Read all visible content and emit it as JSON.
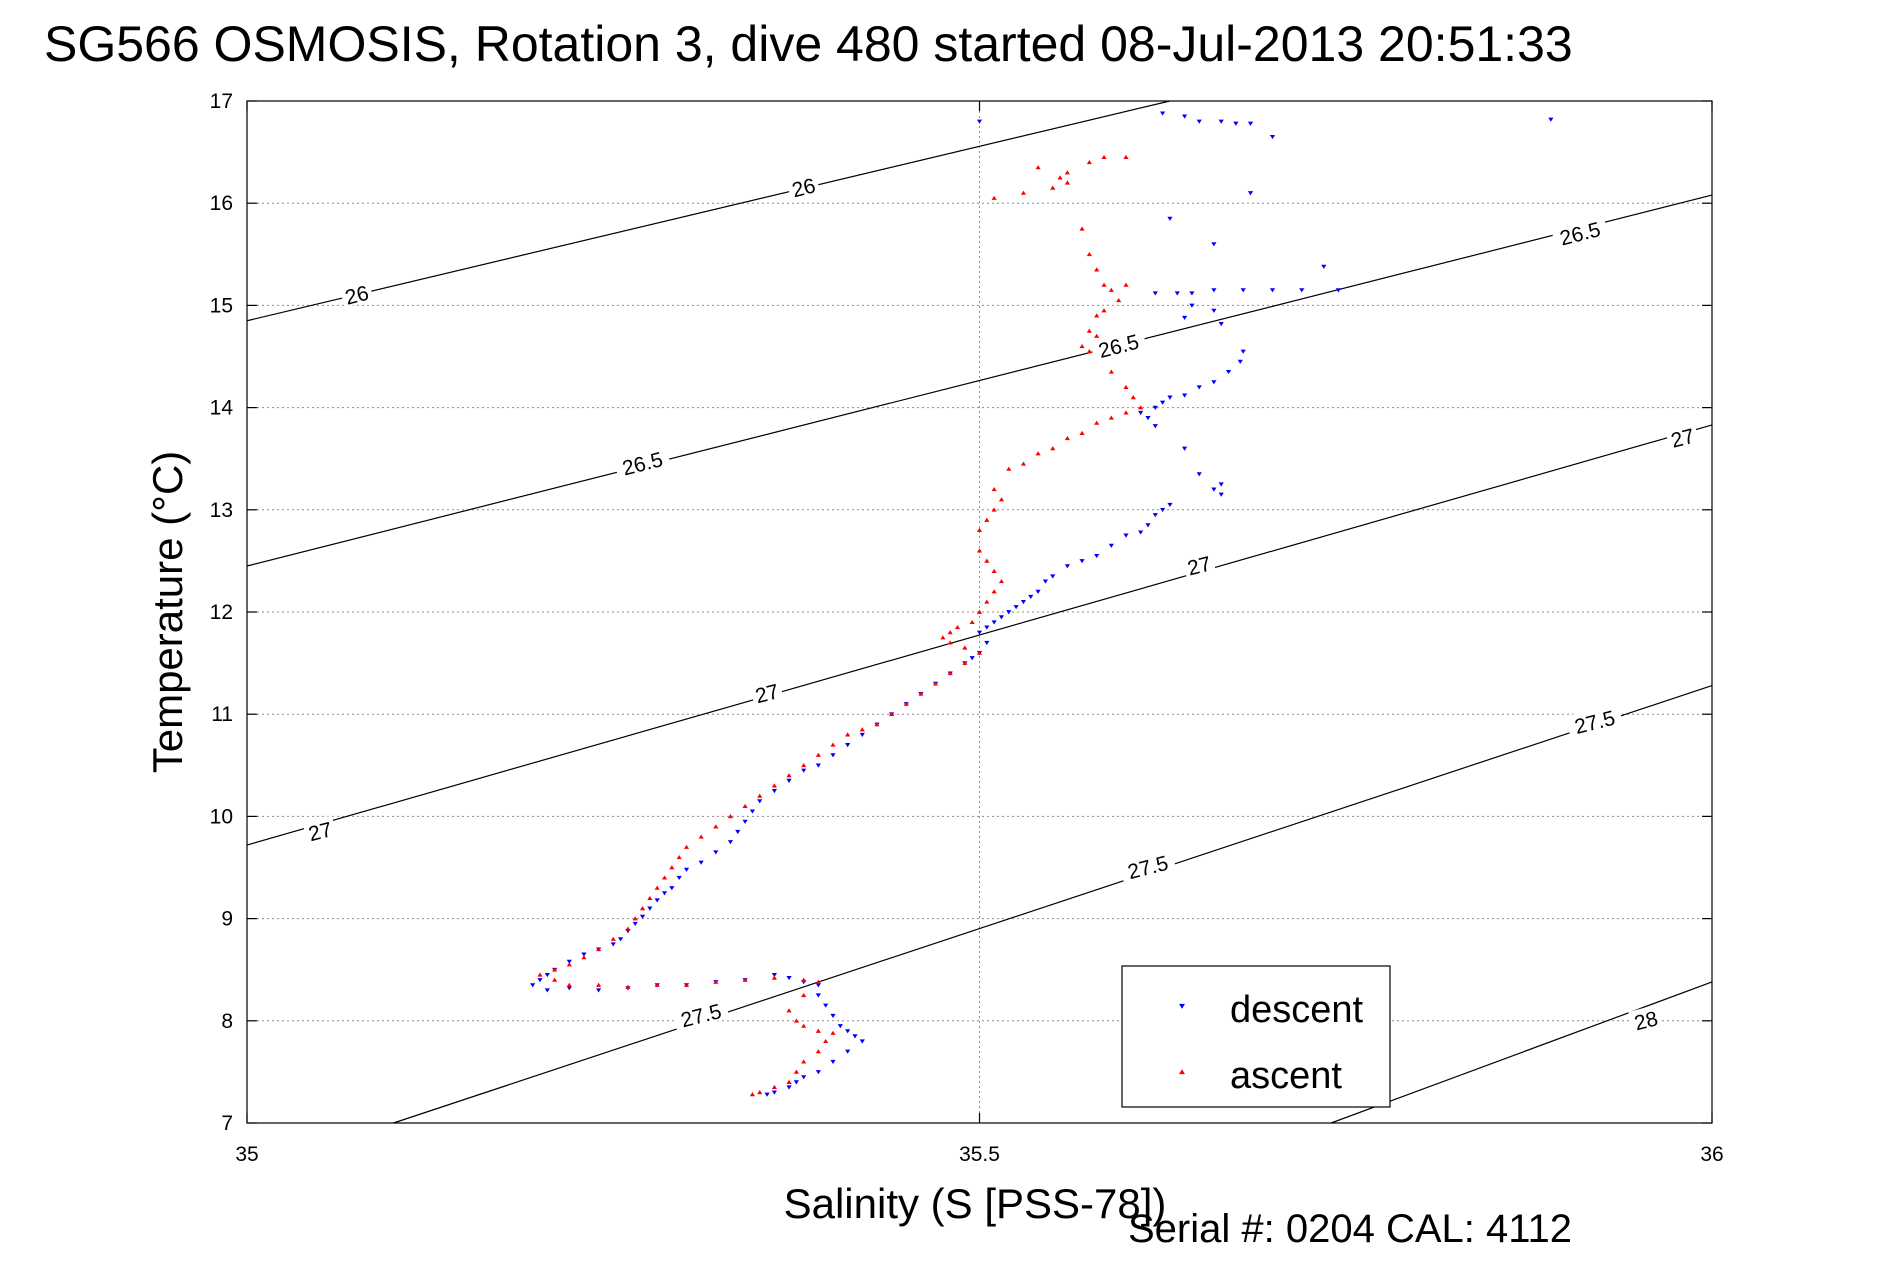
{
  "title": "SG566 OSMOSIS, Rotation 3, dive 480 started 08-Jul-2013 20:51:33",
  "serial_text": "Serial #: 0204  CAL: 4112",
  "colors": {
    "descent": "#0000ff",
    "ascent": "#ff0000",
    "contours": "#000000",
    "grid": "#8c8c8c"
  },
  "chart_data": {
    "type": "scatter",
    "title": "SG566 OSMOSIS, Rotation 3, dive 480 started 08-Jul-2013 20:51:33",
    "xlabel": "Salinity (S [PSS-78])",
    "ylabel": "Temperature (°C)",
    "xlim": [
      35,
      36
    ],
    "ylim": [
      7,
      17
    ],
    "xticks": [
      "35",
      "35.5",
      "36"
    ],
    "yticks": [
      "7",
      "8",
      "9",
      "10",
      "11",
      "12",
      "13",
      "14",
      "15",
      "16",
      "17"
    ],
    "grid": true,
    "legend_position": "bottom-right",
    "legend": [
      "descent",
      "ascent"
    ],
    "density_contours": [
      {
        "value": "26",
        "points": [
          [
            35,
            14.85
          ],
          [
            35.63,
            17
          ]
        ]
      },
      {
        "value": "26.5",
        "points": [
          [
            35,
            12.45
          ],
          [
            36,
            16.08
          ]
        ]
      },
      {
        "value": "27",
        "points": [
          [
            35,
            9.72
          ],
          [
            36,
            13.83
          ]
        ]
      },
      {
        "value": "27.5",
        "points": [
          [
            35.1,
            7
          ],
          [
            36,
            11.28
          ]
        ]
      },
      {
        "value": "28",
        "points": [
          [
            35.74,
            7
          ],
          [
            36,
            8.38
          ]
        ]
      }
    ],
    "contour_labels": [
      {
        "text": "26",
        "x": 35.38,
        "y": 16.15
      },
      {
        "text": "26",
        "x": 35.075,
        "y": 15.1
      },
      {
        "text": "26.5",
        "x": 35.91,
        "y": 15.7
      },
      {
        "text": "26.5",
        "x": 35.595,
        "y": 14.6
      },
      {
        "text": "26.5",
        "x": 35.27,
        "y": 13.45
      },
      {
        "text": "27",
        "x": 35.98,
        "y": 13.7
      },
      {
        "text": "27",
        "x": 35.65,
        "y": 12.45
      },
      {
        "text": "27",
        "x": 35.355,
        "y": 11.2
      },
      {
        "text": "27",
        "x": 35.05,
        "y": 9.85
      },
      {
        "text": "27.5",
        "x": 35.92,
        "y": 10.92
      },
      {
        "text": "27.5",
        "x": 35.615,
        "y": 9.5
      },
      {
        "text": "27.5",
        "x": 35.31,
        "y": 8.05
      },
      {
        "text": "28",
        "x": 35.955,
        "y": 8.0
      }
    ],
    "series": [
      {
        "name": "descent",
        "marker": "triangle-down",
        "color": "#0000ff",
        "points": [
          [
            35.5,
            16.8
          ],
          [
            35.625,
            16.88
          ],
          [
            35.64,
            16.85
          ],
          [
            35.65,
            16.8
          ],
          [
            35.665,
            16.8
          ],
          [
            35.675,
            16.78
          ],
          [
            35.685,
            16.78
          ],
          [
            35.7,
            16.65
          ],
          [
            35.89,
            16.82
          ],
          [
            35.685,
            16.1
          ],
          [
            35.63,
            15.85
          ],
          [
            35.66,
            15.6
          ],
          [
            35.735,
            15.38
          ],
          [
            35.745,
            15.15
          ],
          [
            35.72,
            15.15
          ],
          [
            35.7,
            15.15
          ],
          [
            35.68,
            15.15
          ],
          [
            35.66,
            15.15
          ],
          [
            35.645,
            15.12
          ],
          [
            35.635,
            15.12
          ],
          [
            35.62,
            15.12
          ],
          [
            35.645,
            15.0
          ],
          [
            35.66,
            14.95
          ],
          [
            35.64,
            14.88
          ],
          [
            35.665,
            14.82
          ],
          [
            35.68,
            14.55
          ],
          [
            35.678,
            14.45
          ],
          [
            35.67,
            14.35
          ],
          [
            35.66,
            14.25
          ],
          [
            35.65,
            14.2
          ],
          [
            35.64,
            14.12
          ],
          [
            35.63,
            14.1
          ],
          [
            35.625,
            14.05
          ],
          [
            35.62,
            14.0
          ],
          [
            35.61,
            13.95
          ],
          [
            35.615,
            13.9
          ],
          [
            35.62,
            13.82
          ],
          [
            35.64,
            13.6
          ],
          [
            35.65,
            13.35
          ],
          [
            35.665,
            13.25
          ],
          [
            35.66,
            13.2
          ],
          [
            35.665,
            13.15
          ],
          [
            35.63,
            13.05
          ],
          [
            35.625,
            13.0
          ],
          [
            35.62,
            12.95
          ],
          [
            35.615,
            12.85
          ],
          [
            35.61,
            12.78
          ],
          [
            35.6,
            12.75
          ],
          [
            35.59,
            12.65
          ],
          [
            35.58,
            12.55
          ],
          [
            35.57,
            12.5
          ],
          [
            35.56,
            12.45
          ],
          [
            35.55,
            12.35
          ],
          [
            35.545,
            12.3
          ],
          [
            35.54,
            12.2
          ],
          [
            35.535,
            12.15
          ],
          [
            35.53,
            12.1
          ],
          [
            35.525,
            12.05
          ],
          [
            35.52,
            12.0
          ],
          [
            35.515,
            11.95
          ],
          [
            35.51,
            11.9
          ],
          [
            35.505,
            11.85
          ],
          [
            35.5,
            11.8
          ],
          [
            35.505,
            11.7
          ],
          [
            35.5,
            11.6
          ],
          [
            35.495,
            11.55
          ],
          [
            35.49,
            11.5
          ],
          [
            35.48,
            11.4
          ],
          [
            35.47,
            11.3
          ],
          [
            35.46,
            11.2
          ],
          [
            35.45,
            11.1
          ],
          [
            35.44,
            11.0
          ],
          [
            35.43,
            10.9
          ],
          [
            35.42,
            10.8
          ],
          [
            35.41,
            10.7
          ],
          [
            35.4,
            10.6
          ],
          [
            35.39,
            10.5
          ],
          [
            35.38,
            10.45
          ],
          [
            35.37,
            10.35
          ],
          [
            35.36,
            10.25
          ],
          [
            35.35,
            10.15
          ],
          [
            35.345,
            10.05
          ],
          [
            35.34,
            9.95
          ],
          [
            35.335,
            9.85
          ],
          [
            35.33,
            9.75
          ],
          [
            35.32,
            9.65
          ],
          [
            35.31,
            9.55
          ],
          [
            35.3,
            9.48
          ],
          [
            35.295,
            9.4
          ],
          [
            35.29,
            9.3
          ],
          [
            35.285,
            9.25
          ],
          [
            35.28,
            9.18
          ],
          [
            35.275,
            9.1
          ],
          [
            35.27,
            9.02
          ],
          [
            35.265,
            8.95
          ],
          [
            35.26,
            8.88
          ],
          [
            35.255,
            8.8
          ],
          [
            35.25,
            8.75
          ],
          [
            35.24,
            8.7
          ],
          [
            35.23,
            8.65
          ],
          [
            35.22,
            8.58
          ],
          [
            35.21,
            8.5
          ],
          [
            35.205,
            8.45
          ],
          [
            35.2,
            8.4
          ],
          [
            35.195,
            8.35
          ],
          [
            35.205,
            8.3
          ],
          [
            35.22,
            8.32
          ],
          [
            35.24,
            8.3
          ],
          [
            35.26,
            8.32
          ],
          [
            35.28,
            8.35
          ],
          [
            35.3,
            8.35
          ],
          [
            35.32,
            8.38
          ],
          [
            35.34,
            8.4
          ],
          [
            35.36,
            8.45
          ],
          [
            35.37,
            8.42
          ],
          [
            35.38,
            8.38
          ],
          [
            35.39,
            8.35
          ],
          [
            35.39,
            8.25
          ],
          [
            35.395,
            8.15
          ],
          [
            35.4,
            8.05
          ],
          [
            35.405,
            7.95
          ],
          [
            35.41,
            7.9
          ],
          [
            35.415,
            7.85
          ],
          [
            35.42,
            7.8
          ],
          [
            35.41,
            7.7
          ],
          [
            35.4,
            7.6
          ],
          [
            35.39,
            7.5
          ],
          [
            35.38,
            7.45
          ],
          [
            35.375,
            7.4
          ],
          [
            35.37,
            7.35
          ],
          [
            35.36,
            7.3
          ],
          [
            35.355,
            7.28
          ]
        ]
      },
      {
        "name": "ascent",
        "marker": "triangle-up",
        "color": "#ff0000",
        "points": [
          [
            35.585,
            16.45
          ],
          [
            35.6,
            16.45
          ],
          [
            35.575,
            16.4
          ],
          [
            35.56,
            16.3
          ],
          [
            35.56,
            16.2
          ],
          [
            35.55,
            16.15
          ],
          [
            35.53,
            16.1
          ],
          [
            35.51,
            16.05
          ],
          [
            35.54,
            16.35
          ],
          [
            35.555,
            16.25
          ],
          [
            35.57,
            15.75
          ],
          [
            35.575,
            15.5
          ],
          [
            35.58,
            15.35
          ],
          [
            35.585,
            15.2
          ],
          [
            35.59,
            15.15
          ],
          [
            35.6,
            15.2
          ],
          [
            35.595,
            15.05
          ],
          [
            35.585,
            14.95
          ],
          [
            35.58,
            14.9
          ],
          [
            35.575,
            14.75
          ],
          [
            35.57,
            14.6
          ],
          [
            35.575,
            14.55
          ],
          [
            35.58,
            14.7
          ],
          [
            35.59,
            14.35
          ],
          [
            35.6,
            14.2
          ],
          [
            35.605,
            14.1
          ],
          [
            35.61,
            14.0
          ],
          [
            35.6,
            13.95
          ],
          [
            35.59,
            13.9
          ],
          [
            35.58,
            13.85
          ],
          [
            35.57,
            13.75
          ],
          [
            35.56,
            13.7
          ],
          [
            35.55,
            13.6
          ],
          [
            35.54,
            13.55
          ],
          [
            35.53,
            13.45
          ],
          [
            35.52,
            13.4
          ],
          [
            35.51,
            13.2
          ],
          [
            35.515,
            13.1
          ],
          [
            35.51,
            13.0
          ],
          [
            35.505,
            12.9
          ],
          [
            35.5,
            12.8
          ],
          [
            35.5,
            12.6
          ],
          [
            35.505,
            12.5
          ],
          [
            35.51,
            12.4
          ],
          [
            35.515,
            12.3
          ],
          [
            35.51,
            12.2
          ],
          [
            35.505,
            12.1
          ],
          [
            35.5,
            12.0
          ],
          [
            35.495,
            11.9
          ],
          [
            35.485,
            11.85
          ],
          [
            35.48,
            11.8
          ],
          [
            35.475,
            11.75
          ],
          [
            35.48,
            11.7
          ],
          [
            35.49,
            11.65
          ],
          [
            35.5,
            11.6
          ],
          [
            35.49,
            11.5
          ],
          [
            35.48,
            11.4
          ],
          [
            35.47,
            11.3
          ],
          [
            35.46,
            11.2
          ],
          [
            35.45,
            11.1
          ],
          [
            35.44,
            11.0
          ],
          [
            35.43,
            10.9
          ],
          [
            35.42,
            10.85
          ],
          [
            35.41,
            10.8
          ],
          [
            35.4,
            10.7
          ],
          [
            35.39,
            10.6
          ],
          [
            35.38,
            10.5
          ],
          [
            35.37,
            10.4
          ],
          [
            35.36,
            10.3
          ],
          [
            35.35,
            10.2
          ],
          [
            35.34,
            10.1
          ],
          [
            35.33,
            10.0
          ],
          [
            35.32,
            9.9
          ],
          [
            35.31,
            9.8
          ],
          [
            35.3,
            9.7
          ],
          [
            35.295,
            9.6
          ],
          [
            35.29,
            9.5
          ],
          [
            35.285,
            9.4
          ],
          [
            35.28,
            9.3
          ],
          [
            35.275,
            9.2
          ],
          [
            35.27,
            9.1
          ],
          [
            35.265,
            9.0
          ],
          [
            35.26,
            8.9
          ],
          [
            35.25,
            8.8
          ],
          [
            35.24,
            8.7
          ],
          [
            35.23,
            8.62
          ],
          [
            35.22,
            8.55
          ],
          [
            35.21,
            8.5
          ],
          [
            35.2,
            8.45
          ],
          [
            35.21,
            8.4
          ],
          [
            35.22,
            8.35
          ],
          [
            35.24,
            8.35
          ],
          [
            35.26,
            8.33
          ],
          [
            35.28,
            8.35
          ],
          [
            35.3,
            8.35
          ],
          [
            35.32,
            8.38
          ],
          [
            35.34,
            8.4
          ],
          [
            35.36,
            8.42
          ],
          [
            35.38,
            8.4
          ],
          [
            35.39,
            8.38
          ],
          [
            35.38,
            8.25
          ],
          [
            35.37,
            8.1
          ],
          [
            35.375,
            8.0
          ],
          [
            35.38,
            7.95
          ],
          [
            35.39,
            7.9
          ],
          [
            35.4,
            7.88
          ],
          [
            35.395,
            7.8
          ],
          [
            35.39,
            7.7
          ],
          [
            35.38,
            7.6
          ],
          [
            35.375,
            7.5
          ],
          [
            35.37,
            7.4
          ],
          [
            35.36,
            7.35
          ],
          [
            35.35,
            7.3
          ],
          [
            35.345,
            7.28
          ]
        ]
      }
    ]
  }
}
